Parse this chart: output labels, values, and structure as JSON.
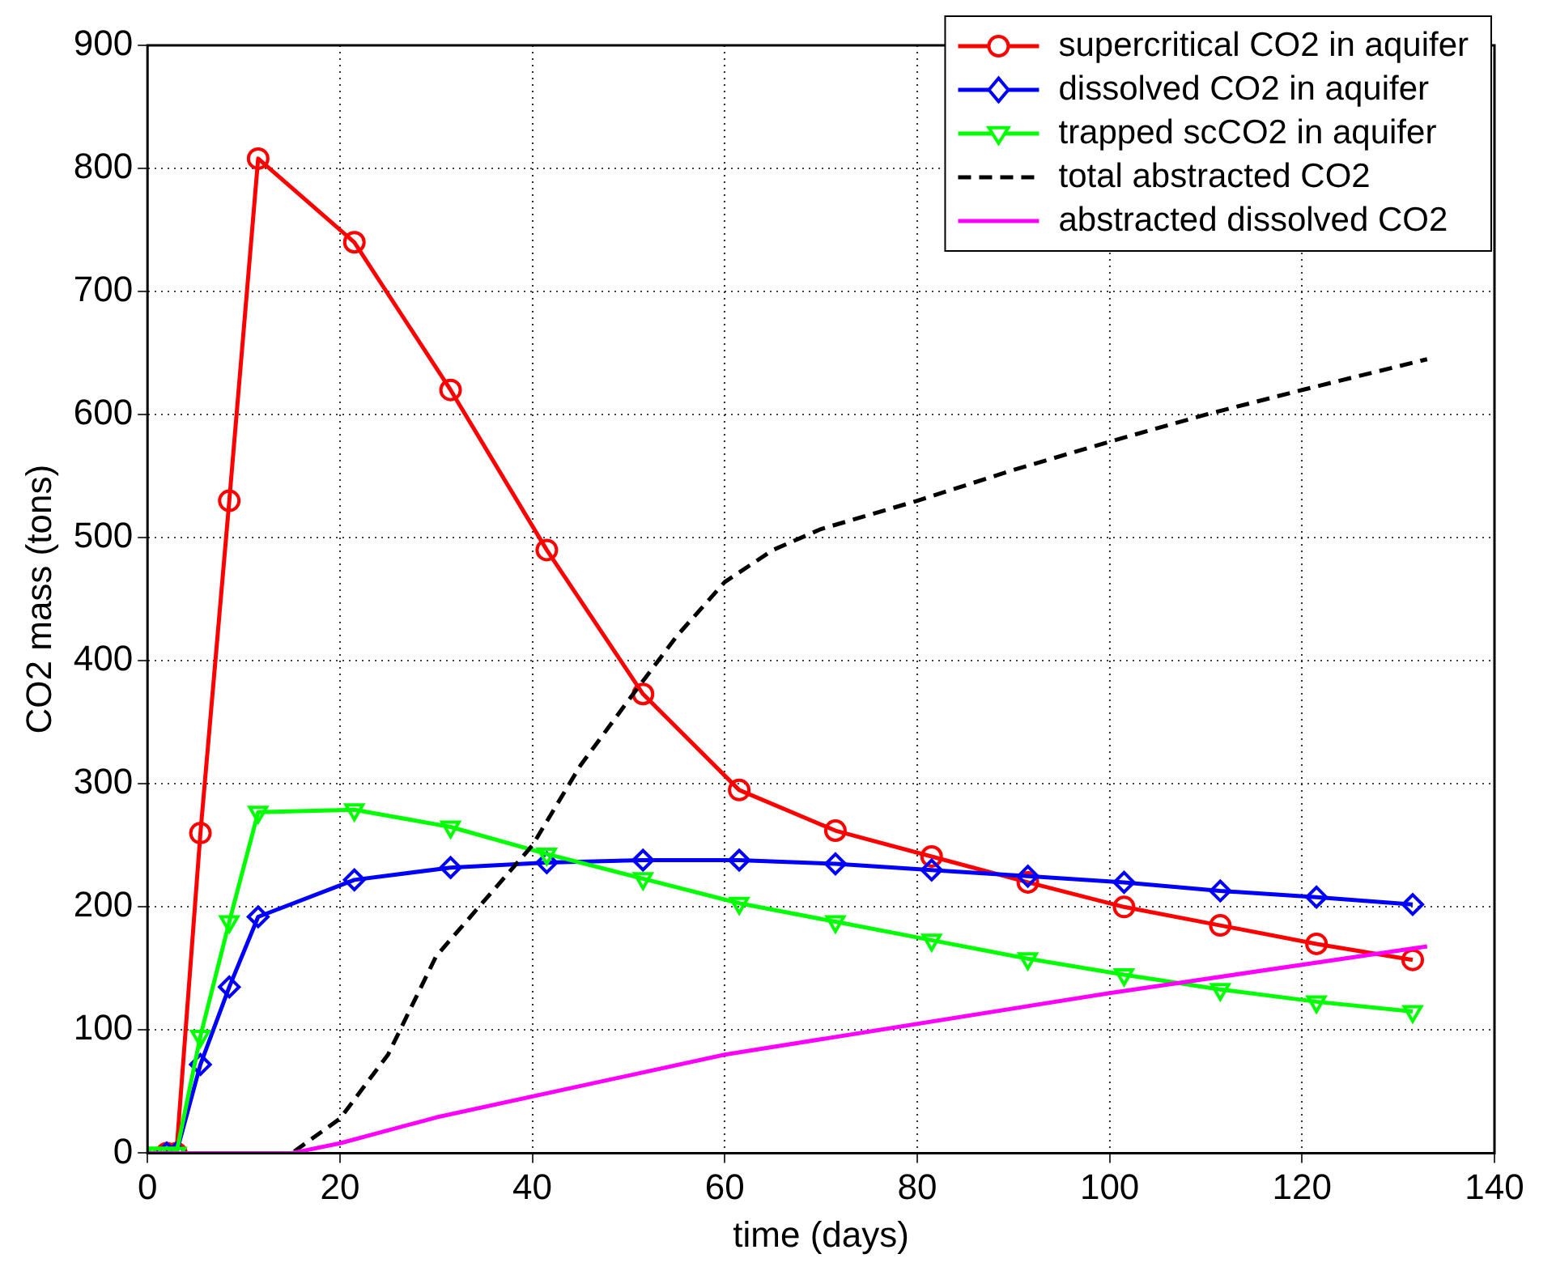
{
  "chart_data": {
    "type": "line",
    "xlabel": "time (days)",
    "ylabel": "CO2 mass (tons)",
    "xlim": [
      0,
      140
    ],
    "xticks": [
      0,
      20,
      40,
      60,
      80,
      100,
      120,
      140
    ],
    "ylim": [
      0,
      900
    ],
    "yticks": [
      0,
      100,
      200,
      300,
      400,
      500,
      600,
      700,
      800,
      900
    ],
    "grid": true,
    "legend": "top right",
    "series": [
      {
        "name": "supercritical CO2 in aquifer",
        "color": "#ff0000",
        "marker": "circle",
        "line_style": "solid",
        "x": [
          2,
          3,
          5.5,
          8.5,
          11.5,
          21.5,
          31.5,
          41.5,
          51.5,
          61.5,
          71.5,
          81.5,
          91.5,
          101.5,
          111.5,
          121.5,
          131.5
        ],
        "values": [
          0,
          0,
          260,
          530,
          808,
          740,
          620,
          490,
          373,
          295,
          262,
          241,
          220,
          200,
          185,
          170,
          157
        ]
      },
      {
        "name": "dissolved CO2 in aquifer",
        "color": "#0000ff",
        "marker": "diamond",
        "line_style": "solid",
        "x": [
          2,
          3,
          5.5,
          8.5,
          11.5,
          21.5,
          31.5,
          41.5,
          51.5,
          61.5,
          71.5,
          81.5,
          91.5,
          101.5,
          111.5,
          121.5,
          131.5
        ],
        "values": [
          0,
          0,
          72,
          135,
          192,
          222,
          232,
          236,
          238,
          238,
          235,
          230,
          225,
          220,
          213,
          208,
          202
        ]
      },
      {
        "name": "trapped scCO2 in aquifer",
        "color": "#00ff00",
        "marker": "triangle",
        "line_style": "solid",
        "x": [
          0,
          1,
          2,
          3,
          5.5,
          8.5,
          11.5,
          21.5,
          31.5,
          41.5,
          51.5,
          61.5,
          71.5,
          81.5,
          91.5,
          101.5,
          111.5,
          121.5,
          131.5
        ],
        "values": [
          0,
          0,
          0,
          0,
          95,
          188,
          277,
          279,
          265,
          243,
          223,
          203,
          188,
          173,
          158,
          145,
          133,
          123,
          115
        ]
      },
      {
        "name": "total abstracted CO2",
        "color": "#000000",
        "marker": "none",
        "line_style": "dashed",
        "x": [
          0,
          15,
          20,
          25,
          30,
          35,
          40,
          45,
          50,
          55,
          60,
          65,
          70,
          80,
          90,
          100,
          110,
          120,
          133
        ],
        "values": [
          0,
          0,
          28,
          80,
          160,
          205,
          250,
          315,
          368,
          420,
          464,
          490,
          507,
          530,
          555,
          578,
          600,
          620,
          645
        ]
      },
      {
        "name": "abstracted dissolved CO2",
        "color": "#ff00ff",
        "marker": "none",
        "line_style": "solid",
        "x": [
          0,
          15,
          20,
          30,
          60,
          100,
          133
        ],
        "values": [
          0,
          0,
          8,
          29,
          80,
          130,
          168
        ]
      }
    ]
  }
}
